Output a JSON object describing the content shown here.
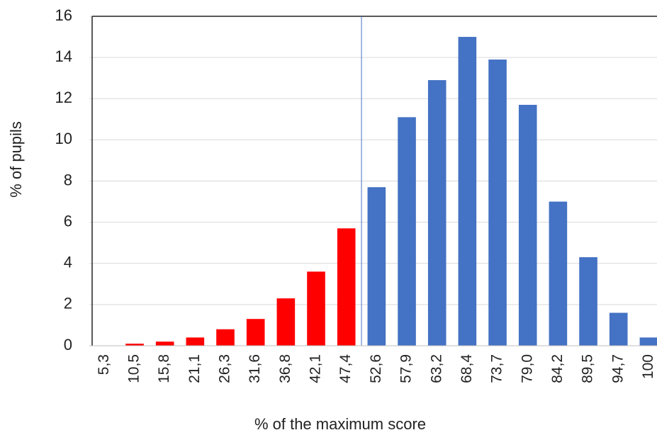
{
  "chart_data": {
    "type": "bar",
    "x_label": "% of the maximum score",
    "y_label": "% of  pupils",
    "categories": [
      "5,3",
      "10,5",
      "15,8",
      "21,1",
      "26,3",
      "31,6",
      "36,8",
      "42,1",
      "47,4",
      "52,6",
      "57,9",
      "63,2",
      "68,4",
      "73,7",
      "79,0",
      "84,2",
      "89,5",
      "94,7",
      "100"
    ],
    "values": [
      0,
      0.1,
      0.2,
      0.4,
      0.8,
      1.3,
      2.3,
      3.6,
      5.7,
      7.7,
      11.1,
      12.9,
      15.0,
      13.9,
      11.7,
      7.0,
      4.3,
      1.6,
      0.4
    ],
    "colors": [
      "#ff0000",
      "#ff0000",
      "#ff0000",
      "#ff0000",
      "#ff0000",
      "#ff0000",
      "#ff0000",
      "#ff0000",
      "#ff0000",
      "#4472c4",
      "#4472c4",
      "#4472c4",
      "#4472c4",
      "#4472c4",
      "#4472c4",
      "#4472c4",
      "#4472c4",
      "#4472c4",
      "#4472c4"
    ],
    "ylim": [
      0,
      16
    ],
    "yticks": [
      0,
      2,
      4,
      6,
      8,
      10,
      12,
      14,
      16
    ],
    "grid": true
  }
}
